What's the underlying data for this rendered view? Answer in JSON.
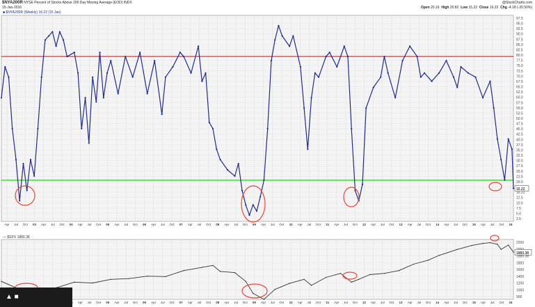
{
  "header": {
    "symbol": "$NYA200R",
    "title": "NYSE Percent of Stocks Above 200 Day Moving Average (EOD) INDX",
    "date": "15-Jan-2016",
    "open_label": "Open",
    "open_value": "20.16",
    "high_label": "High",
    "high_value": "20.82",
    "low_label": "Low",
    "low_value": "15.22",
    "close_label": "Close",
    "close_value": "16.22",
    "chg_label": "Chg",
    "chg_value": "-4.18 (-20.50%)",
    "source": "@StockCharts.com"
  },
  "upper_legend": "■ $NYA200R (Weekly) 16.22 (15 Jan)",
  "lower_legend": "— $SPX 1880.38",
  "chart_data": [
    {
      "type": "line",
      "name": "upper-panel",
      "series": [
        {
          "name": "$NYA200R",
          "x": [
            2002.0,
            2002.1,
            2002.2,
            2002.3,
            2002.4,
            2002.5,
            2002.6,
            2002.7,
            2002.8,
            2002.9,
            2003.0,
            2003.1,
            2003.2,
            2003.3,
            2003.4,
            2003.5,
            2003.6,
            2003.7,
            2003.8,
            2004.0,
            2004.1,
            2004.2,
            2004.3,
            2004.4,
            2004.5,
            2004.6,
            2004.7,
            2004.8,
            2004.9,
            2005.0,
            2005.2,
            2005.4,
            2005.6,
            2005.8,
            2006.0,
            2006.2,
            2006.4,
            2006.5,
            2006.7,
            2006.9,
            2007.0,
            2007.2,
            2007.4,
            2007.5,
            2007.6,
            2007.7,
            2007.8,
            2007.9,
            2008.0,
            2008.2,
            2008.4,
            2008.5,
            2008.6,
            2008.7,
            2008.8,
            2008.9,
            2009.0,
            2009.1,
            2009.2,
            2009.3,
            2009.4,
            2009.5,
            2009.6,
            2009.7,
            2009.9,
            2010.0,
            2010.2,
            2010.3,
            2010.4,
            2010.5,
            2010.6,
            2010.7,
            2010.9,
            2011.0,
            2011.2,
            2011.4,
            2011.5,
            2011.6,
            2011.7,
            2011.8,
            2011.9,
            2012.0,
            2012.2,
            2012.4,
            2012.5,
            2012.6,
            2012.8,
            2013.0,
            2013.2,
            2013.4,
            2013.5,
            2013.6,
            2013.8,
            2014.0,
            2014.2,
            2014.4,
            2014.5,
            2014.6,
            2014.8,
            2015.0,
            2015.2,
            2015.4,
            2015.5,
            2015.6,
            2015.7,
            2015.8,
            2015.9,
            2016.0,
            2016.04
          ],
          "values": [
            60,
            75,
            70,
            45,
            30,
            10,
            28,
            15,
            30,
            22,
            45,
            70,
            88,
            90,
            92,
            85,
            92,
            88,
            80,
            82,
            72,
            45,
            60,
            38,
            70,
            58,
            82,
            60,
            72,
            78,
            62,
            80,
            70,
            82,
            62,
            78,
            52,
            70,
            75,
            82,
            80,
            72,
            85,
            68,
            72,
            48,
            45,
            35,
            30,
            25,
            22,
            28,
            15,
            8,
            3,
            8,
            5,
            12,
            20,
            45,
            78,
            88,
            95,
            90,
            85,
            90,
            75,
            55,
            35,
            60,
            72,
            70,
            80,
            82,
            75,
            85,
            80,
            45,
            15,
            10,
            18,
            55,
            65,
            70,
            80,
            72,
            60,
            78,
            85,
            80,
            70,
            72,
            68,
            72,
            78,
            70,
            65,
            75,
            72,
            70,
            60,
            68,
            55,
            40,
            30,
            20,
            40,
            35,
            16
          ]
        }
      ],
      "reference_lines": [
        {
          "value": 80,
          "color": "#e8443a"
        },
        {
          "value": 20,
          "color": "#3fc93a"
        }
      ],
      "ylim": [
        0,
        100
      ],
      "ytick_labels": [
        "97.5",
        "95.0",
        "92.5",
        "90.0",
        "87.5",
        "85.0",
        "82.5",
        "80.0",
        "77.5",
        "75.0",
        "72.5",
        "70.0",
        "67.5",
        "65.0",
        "62.5",
        "60.0",
        "57.5",
        "55.0",
        "52.5",
        "50.0",
        "47.5",
        "45.0",
        "42.5",
        "40.0",
        "37.5",
        "35.0",
        "32.5",
        "30.0",
        "27.5",
        "25.0",
        "22.5",
        "20.0",
        "17.5",
        "16.22",
        "12.5",
        "10.0",
        "7.5",
        "5.0",
        "2.5"
      ],
      "last_value_label": "16.22",
      "xtick_labels": [
        "Apr",
        "Jul",
        "Oct",
        "03",
        "Apr",
        "Jul",
        "Oct",
        "04",
        "Apr",
        "Jul",
        "Oct",
        "05",
        "Apr",
        "Jul",
        "Oct",
        "06",
        "Apr",
        "Jul",
        "Oct",
        "07",
        "Apr",
        "Jul",
        "Oct",
        "08",
        "Apr",
        "Jul",
        "Oct",
        "09",
        "Apr",
        "Jul",
        "Oct",
        "10",
        "Apr",
        "Jul",
        "Oct",
        "11",
        "Apr",
        "Jul",
        "Oct",
        "12",
        "Apr",
        "Jul",
        "Oct",
        "13",
        "Apr",
        "Jul",
        "Oct",
        "14",
        "Apr",
        "Jul",
        "Oct",
        "15",
        "Apr",
        "Jul",
        "Oct",
        "16"
      ],
      "highlight_circles": [
        "2002 Jul–Oct lows",
        "2008 Oct – 2009 Mar lows",
        "2011 Aug–Oct lows",
        "2015 Aug–Sep lows"
      ],
      "line_color": "#1f2a8a",
      "grid": true
    },
    {
      "type": "line",
      "name": "lower-panel",
      "series": [
        {
          "name": "$SPX",
          "x": [
            2002.0,
            2002.5,
            2002.8,
            2003.2,
            2003.5,
            2004.0,
            2004.5,
            2005.0,
            2005.5,
            2006.0,
            2006.5,
            2007.0,
            2007.5,
            2007.8,
            2008.0,
            2008.4,
            2008.7,
            2008.9,
            2009.2,
            2009.5,
            2009.9,
            2010.3,
            2010.5,
            2010.9,
            2011.3,
            2011.6,
            2011.8,
            2012.1,
            2012.5,
            2012.9,
            2013.3,
            2013.7,
            2014.0,
            2014.5,
            2014.9,
            2015.2,
            2015.4,
            2015.6,
            2015.7,
            2015.9,
            2016.04
          ],
          "values": [
            1150,
            950,
            820,
            850,
            990,
            1130,
            1110,
            1200,
            1220,
            1280,
            1270,
            1420,
            1500,
            1550,
            1400,
            1370,
            1150,
            850,
            700,
            950,
            1100,
            1200,
            1050,
            1250,
            1350,
            1130,
            1200,
            1320,
            1350,
            1420,
            1580,
            1680,
            1800,
            1950,
            2050,
            2100,
            2120,
            2080,
            1950,
            2060,
            1880
          ]
        }
      ],
      "ylim": [
        700,
        2200
      ],
      "ytick_labels": [
        "2200",
        "2000",
        "1880.38",
        "1800",
        "1600",
        "1400",
        "1200",
        "1000",
        "900"
      ],
      "last_value_label": "1880.38",
      "xtick_labels": [
        "Apr",
        "Jul",
        "Oct",
        "03",
        "Apr",
        "Jul",
        "Oct",
        "04",
        "Apr",
        "Jul",
        "Oct",
        "05",
        "Apr",
        "Jul",
        "Oct",
        "06",
        "Apr",
        "Jul",
        "Oct",
        "07",
        "Apr",
        "Jul",
        "Oct",
        "08",
        "Apr",
        "Jul",
        "Oct",
        "09",
        "Apr",
        "Jul",
        "Oct",
        "10",
        "Apr",
        "Jul",
        "Oct",
        "11",
        "Apr",
        "Jul",
        "Oct",
        "12",
        "Apr",
        "Jul",
        "Oct",
        "13",
        "Apr",
        "Jul",
        "Oct",
        "14",
        "Apr",
        "Jul",
        "Oct",
        "15",
        "Apr",
        "Jul",
        "Oct",
        "16"
      ],
      "highlight_circles": [
        "2002 lows",
        "2009 lows",
        "2011 lows",
        "2015 high"
      ],
      "line_color": "#333333"
    }
  ]
}
